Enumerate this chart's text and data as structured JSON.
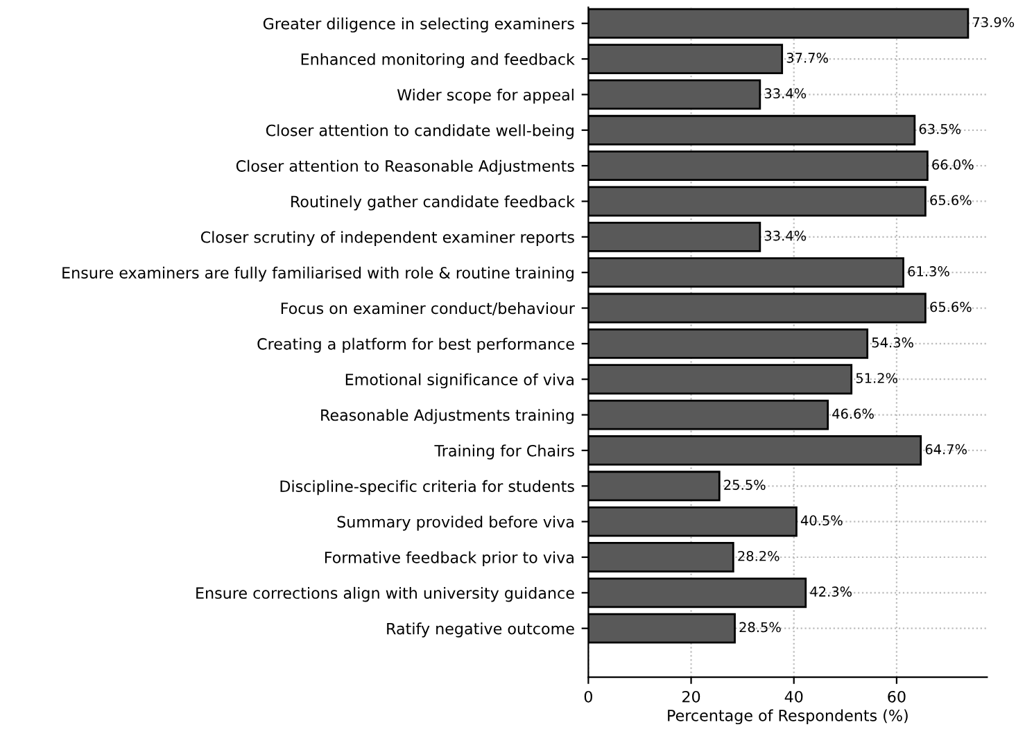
{
  "chart_data": {
    "type": "bar",
    "orientation": "horizontal",
    "xlabel": "Percentage of Respondents (%)",
    "categories": [
      "Greater diligence in selecting examiners",
      "Enhanced monitoring and feedback",
      "Wider scope for appeal",
      "Closer attention to candidate well-being",
      "Closer attention to Reasonable Adjustments",
      "Routinely gather candidate feedback",
      "Closer scrutiny of independent examiner reports",
      "Ensure examiners are fully familiarised with role & routine training",
      "Focus on examiner conduct/behaviour",
      "Creating a platform for best performance",
      "Emotional significance of viva",
      "Reasonable Adjustments training",
      "Training for Chairs",
      "Discipline-specific criteria for students",
      "Summary provided before viva",
      "Formative feedback prior to viva",
      "Ensure corrections align with university guidance",
      "Ratify negative outcome"
    ],
    "values": [
      73.9,
      37.7,
      33.4,
      63.5,
      66.0,
      65.6,
      33.4,
      61.3,
      65.6,
      54.3,
      51.2,
      46.6,
      64.7,
      25.5,
      40.5,
      28.2,
      42.3,
      28.5
    ],
    "value_labels": [
      "73.9%",
      "37.7%",
      "33.4%",
      "63.5%",
      "66.0%",
      "65.6%",
      "33.4%",
      "61.3%",
      "65.6%",
      "54.3%",
      "51.2%",
      "46.6%",
      "64.7%",
      "25.5%",
      "40.5%",
      "28.2%",
      "42.3%",
      "28.5%"
    ],
    "color": "#595959",
    "xlim": [
      0,
      77.6
    ],
    "xticks": [
      0,
      20,
      40,
      60
    ],
    "grid": true
  }
}
